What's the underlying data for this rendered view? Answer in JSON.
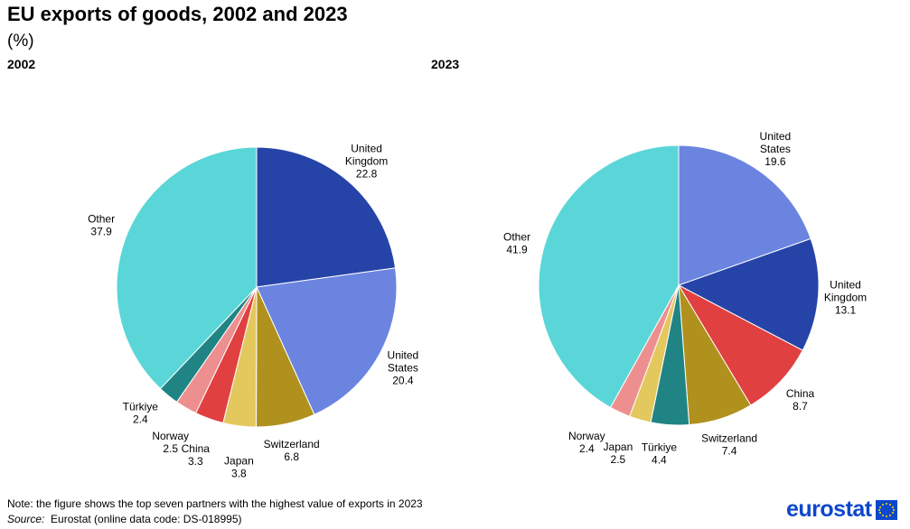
{
  "title": "EU exports of goods, 2002 and 2023",
  "subtitle": "(%)",
  "note": "Note: the figure shows the top seven partners with the highest value of exports in 2023",
  "source_label": "Source:",
  "source_text": "Eurostat (online data code: DS-018995)",
  "logo_text": "eurostat",
  "chart_data": [
    {
      "type": "pie",
      "title": "2002",
      "slices": [
        {
          "label": "United Kingdom",
          "value": 22.8,
          "color": "#2644a8"
        },
        {
          "label": "United States",
          "value": 20.4,
          "color": "#6b84e0"
        },
        {
          "label": "Switzerland",
          "value": 6.8,
          "color": "#b0911e"
        },
        {
          "label": "Japan",
          "value": 3.8,
          "color": "#e3c85e"
        },
        {
          "label": "China",
          "value": 3.3,
          "color": "#e04040"
        },
        {
          "label": "Norway",
          "value": 2.5,
          "color": "#ee8f8f"
        },
        {
          "label": "Türkiye",
          "value": 2.4,
          "color": "#208484"
        },
        {
          "label": "Other",
          "value": 37.9,
          "color": "#5ad6d8"
        }
      ]
    },
    {
      "type": "pie",
      "title": "2023",
      "slices": [
        {
          "label": "United States",
          "value": 19.6,
          "color": "#6b84e0"
        },
        {
          "label": "United Kingdom",
          "value": 13.1,
          "color": "#2644a8"
        },
        {
          "label": "China",
          "value": 8.7,
          "color": "#e04040"
        },
        {
          "label": "Switzerland",
          "value": 7.4,
          "color": "#b0911e"
        },
        {
          "label": "Türkiye",
          "value": 4.4,
          "color": "#208484"
        },
        {
          "label": "Japan",
          "value": 2.5,
          "color": "#e3c85e"
        },
        {
          "label": "Norway",
          "value": 2.4,
          "color": "#ee8f8f"
        },
        {
          "label": "Other",
          "value": 41.9,
          "color": "#5ad6d8"
        }
      ]
    }
  ]
}
